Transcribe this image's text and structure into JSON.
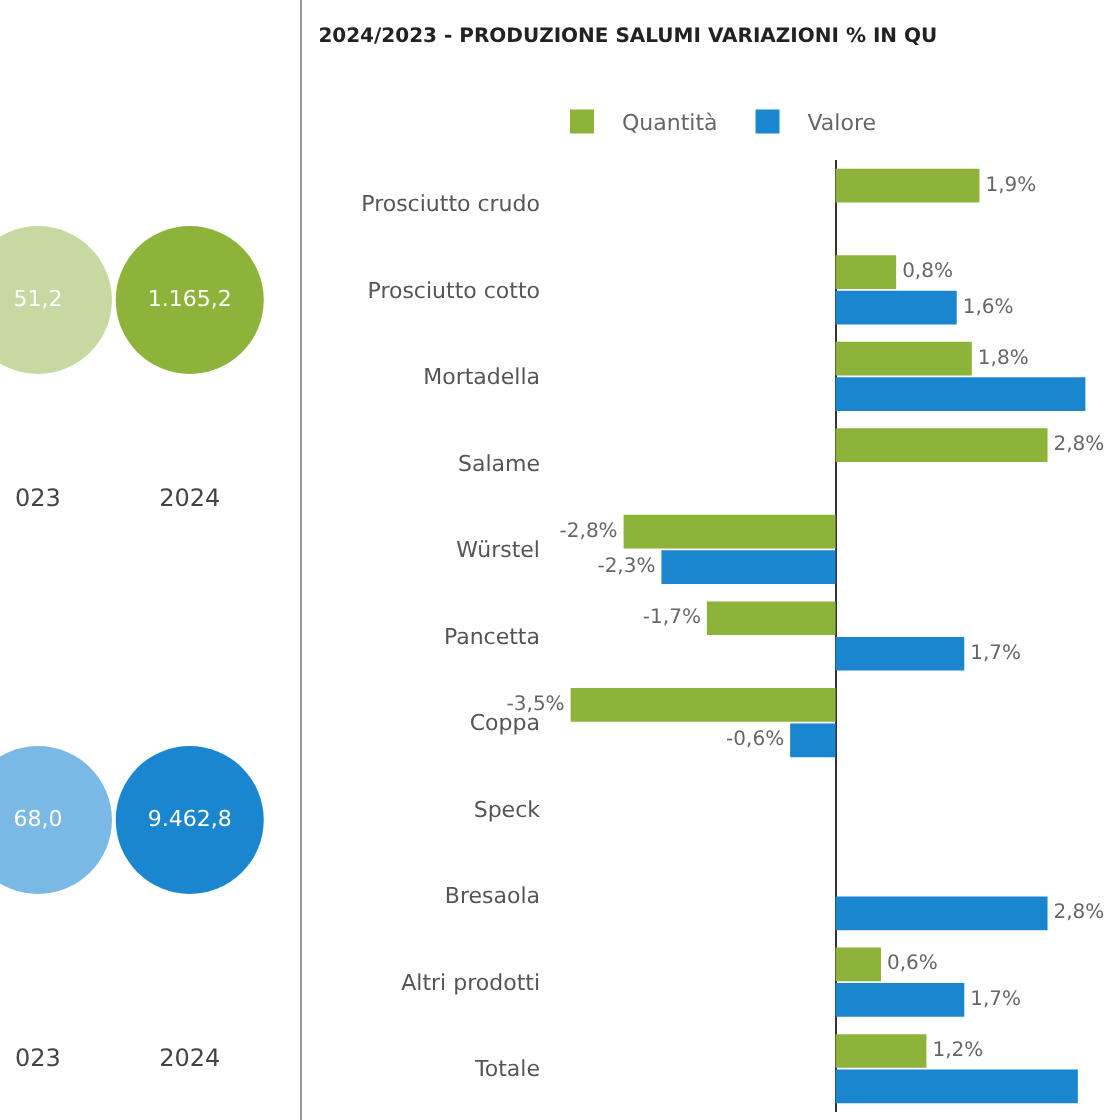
{
  "chart_data": [
    {
      "type": "other",
      "categories": [
        "023",
        "2024"
      ],
      "colors": [
        "#c5d9a0",
        "#8db33a"
      ],
      "value_labels": [
        "51,2",
        "1.165,2"
      ]
    },
    {
      "type": "other",
      "categories": [
        "023",
        "2024"
      ],
      "colors": [
        "#7ab8e6",
        "#1a86cf"
      ],
      "value_labels": [
        "68,0",
        "9.462,8"
      ]
    },
    {
      "type": "bar",
      "orientation": "horizontal",
      "title": "2024/2023 - PRODUZIONE SALUMI VARIAZIONI % IN QU",
      "categories": [
        "Prosciutto crudo",
        "Prosciutto cotto",
        "Mortadella",
        "Salame",
        "Würstel",
        "Pancetta",
        "Coppa",
        "Speck",
        "Bresaola",
        "Altri prodotti",
        "Totale"
      ],
      "series": [
        {
          "name": "Quantità",
          "color": "#8db33a",
          "values": [
            1.9,
            0.8,
            1.8,
            2.8,
            -2.8,
            -1.7,
            -3.5,
            null,
            null,
            0.6,
            1.2
          ],
          "value_labels": [
            "1,9%",
            "0,8%",
            "1,8%",
            "2,8%",
            "-2,8%",
            "-1,7%",
            "-3,5%",
            null,
            null,
            "0,6%",
            "1,2%"
          ]
        },
        {
          "name": "Valore",
          "color": "#1a86cf",
          "values": [
            null,
            1.6,
            3.3,
            null,
            -2.3,
            1.7,
            -0.6,
            null,
            2.8,
            1.7,
            3.2
          ],
          "value_labels": [
            null,
            "1,6%",
            null,
            null,
            "-2,3%",
            "1,7%",
            "-0,6%",
            null,
            "2,8%",
            "1,7%",
            null
          ]
        }
      ],
      "legend": "top left",
      "grid": false,
      "tick_labels": "y"
    }
  ]
}
